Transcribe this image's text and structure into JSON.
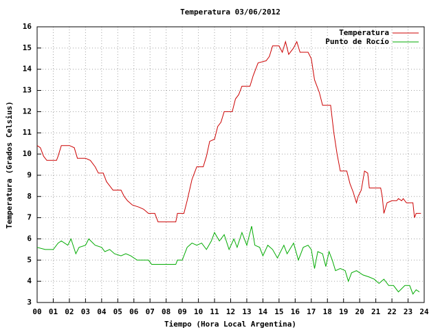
{
  "chart_data": {
    "type": "line",
    "title": "Temperatura 03/06/2012",
    "xlabel": "Tiempo (Hora Local Argentina)",
    "ylabel": "Temperatura (Grados Celsius)",
    "xlim": [
      0,
      24
    ],
    "ylim": [
      3,
      16
    ],
    "xticks": [
      {
        "value": 0,
        "label": "00"
      },
      {
        "value": 1,
        "label": "01"
      },
      {
        "value": 2,
        "label": "02"
      },
      {
        "value": 3,
        "label": "03"
      },
      {
        "value": 4,
        "label": "04"
      },
      {
        "value": 5,
        "label": "05"
      },
      {
        "value": 6,
        "label": "06"
      },
      {
        "value": 7,
        "label": "07"
      },
      {
        "value": 8,
        "label": "08"
      },
      {
        "value": 9,
        "label": "09"
      },
      10,
      11,
      12,
      13,
      14,
      15,
      16,
      17,
      18,
      19,
      20,
      21,
      22,
      23,
      24
    ],
    "yticks": [
      3,
      4,
      5,
      6,
      7,
      8,
      9,
      10,
      11,
      12,
      13,
      14,
      15,
      16
    ],
    "grid": true,
    "legend": "top right",
    "series": [
      {
        "name": "Temperatura",
        "color": "#cc0000",
        "x": [
          0,
          0.2,
          0.4,
          0.6,
          1.2,
          1.3,
          1.5,
          2.0,
          2.3,
          2.5,
          3.0,
          3.3,
          3.6,
          3.8,
          4.1,
          4.3,
          4.5,
          4.7,
          5.2,
          5.4,
          5.6,
          5.9,
          6.3,
          6.6,
          6.9,
          7.3,
          7.5,
          8.6,
          8.7,
          9.1,
          9.3,
          9.6,
          9.9,
          10.3,
          10.5,
          10.7,
          11.0,
          11.2,
          11.4,
          11.6,
          12.1,
          12.3,
          12.5,
          12.7,
          13.2,
          13.4,
          13.7,
          14.2,
          14.4,
          14.6,
          15.0,
          15.2,
          15.4,
          15.6,
          15.9,
          16.1,
          16.3,
          16.5,
          16.8,
          17.0,
          17.2,
          17.5,
          17.7,
          18.2,
          18.4,
          18.6,
          18.8,
          19.2,
          19.4,
          19.6,
          19.8,
          19.9,
          20.1,
          20.3,
          20.5,
          20.6,
          21.3,
          21.4,
          21.5,
          21.7,
          22.0,
          22.3,
          22.4,
          22.6,
          22.7,
          22.9,
          23.3,
          23.4,
          23.5,
          23.8
        ],
        "values": [
          10.4,
          10.3,
          9.9,
          9.7,
          9.7,
          9.9,
          10.4,
          10.4,
          10.3,
          9.8,
          9.8,
          9.7,
          9.4,
          9.1,
          9.1,
          8.7,
          8.5,
          8.3,
          8.3,
          8.0,
          7.8,
          7.6,
          7.5,
          7.4,
          7.2,
          7.2,
          6.8,
          6.8,
          7.2,
          7.2,
          7.8,
          8.8,
          9.4,
          9.4,
          9.9,
          10.6,
          10.7,
          11.3,
          11.5,
          12.0,
          12.0,
          12.6,
          12.8,
          13.2,
          13.2,
          13.7,
          14.3,
          14.4,
          14.6,
          15.1,
          15.1,
          14.8,
          15.3,
          14.7,
          15.0,
          15.3,
          14.8,
          14.8,
          14.8,
          14.5,
          13.5,
          12.9,
          12.3,
          12.3,
          11.0,
          10.0,
          9.2,
          9.2,
          8.6,
          8.2,
          7.7,
          8.0,
          8.3,
          9.2,
          9.1,
          8.4,
          8.4,
          8.0,
          7.2,
          7.7,
          7.8,
          7.8,
          7.9,
          7.8,
          7.9,
          7.7,
          7.7,
          7.0,
          7.2,
          7.2
        ]
      },
      {
        "name": "Punto de Rocío",
        "color": "#00aa00",
        "x": [
          0,
          0.5,
          1.0,
          1.3,
          1.5,
          1.9,
          2.1,
          2.4,
          2.6,
          3.0,
          3.2,
          3.6,
          4.0,
          4.2,
          4.5,
          4.8,
          5.2,
          5.5,
          5.8,
          6.2,
          6.9,
          7.1,
          8.6,
          8.7,
          9.0,
          9.3,
          9.6,
          9.9,
          10.2,
          10.5,
          10.8,
          11.0,
          11.3,
          11.6,
          11.9,
          12.2,
          12.4,
          12.7,
          13.0,
          13.3,
          13.5,
          13.8,
          14.0,
          14.3,
          14.6,
          14.9,
          15.3,
          15.5,
          15.9,
          16.2,
          16.5,
          16.8,
          17.0,
          17.2,
          17.4,
          17.7,
          17.9,
          18.1,
          18.3,
          18.5,
          18.8,
          19.1,
          19.3,
          19.5,
          19.8,
          20.2,
          20.6,
          20.9,
          21.2,
          21.5,
          21.8,
          22.1,
          22.4,
          22.8,
          23.1,
          23.3,
          23.5,
          23.7
        ],
        "values": [
          5.6,
          5.5,
          5.5,
          5.8,
          5.9,
          5.7,
          6.0,
          5.3,
          5.6,
          5.7,
          6.0,
          5.7,
          5.6,
          5.4,
          5.5,
          5.3,
          5.2,
          5.3,
          5.2,
          5.0,
          5.0,
          4.8,
          4.8,
          5.0,
          5.0,
          5.6,
          5.8,
          5.7,
          5.8,
          5.5,
          5.9,
          6.3,
          5.9,
          6.2,
          5.5,
          6.0,
          5.6,
          6.3,
          5.7,
          6.6,
          5.7,
          5.6,
          5.2,
          5.7,
          5.5,
          5.1,
          5.7,
          5.3,
          5.8,
          5.0,
          5.6,
          5.7,
          5.5,
          4.6,
          5.4,
          5.3,
          4.7,
          5.4,
          5.0,
          4.5,
          4.6,
          4.5,
          4.0,
          4.4,
          4.5,
          4.3,
          4.2,
          4.1,
          3.9,
          4.1,
          3.8,
          3.8,
          3.5,
          3.8,
          3.8,
          3.4,
          3.6,
          3.5
        ]
      }
    ]
  }
}
